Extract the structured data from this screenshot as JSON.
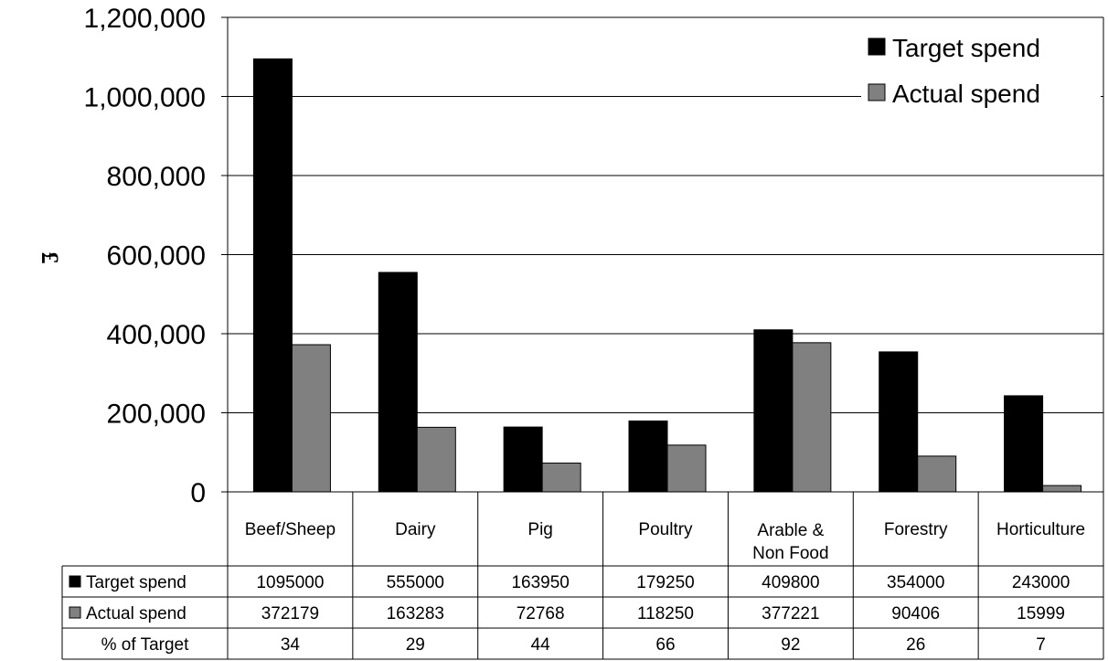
{
  "chart_data": {
    "type": "bar",
    "title": "",
    "xlabel": "",
    "ylabel": "£",
    "ylim": [
      0,
      1200000
    ],
    "yticks": [
      "0",
      "200,000",
      "400,000",
      "600,000",
      "800,000",
      "1,000,000",
      "1,200,000"
    ],
    "categories": [
      "Beef/Sheep",
      "Dairy",
      "Pig",
      "Poultry",
      "Arable & Non Food",
      "Forestry",
      "Horticulture"
    ],
    "series": [
      {
        "name": "Target spend",
        "color": "#000000",
        "values": [
          1095000,
          555000,
          163950,
          179250,
          409800,
          354000,
          243000
        ]
      },
      {
        "name": "Actual spend",
        "color": "#808080",
        "values": [
          372179,
          163283,
          72768,
          118250,
          377221,
          90406,
          15999
        ]
      }
    ],
    "table_rows": [
      {
        "label": "Target spend",
        "marker_color": "#000000",
        "values": [
          "1095000",
          "555000",
          "163950",
          "179250",
          "409800",
          "354000",
          "243000"
        ]
      },
      {
        "label": "Actual spend",
        "marker_color": "#808080",
        "values": [
          "372179",
          "163283",
          "72768",
          "118250",
          "377221",
          "90406",
          "15999"
        ]
      },
      {
        "label": "% of Target",
        "marker_color": "",
        "values": [
          "34",
          "29",
          "44",
          "66",
          "92",
          "26",
          "7"
        ]
      }
    ],
    "grid": true,
    "legend_position": "top-right"
  }
}
